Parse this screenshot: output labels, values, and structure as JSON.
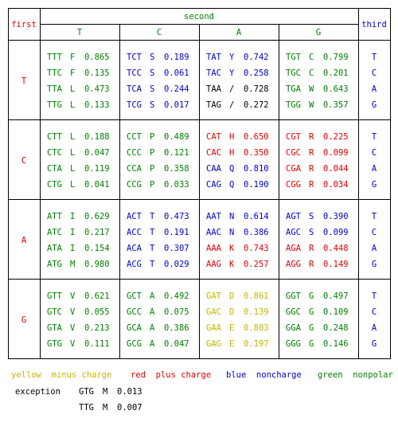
{
  "header": {
    "first_label": "first",
    "second_label": "second",
    "third_label": "third",
    "columns": [
      "T",
      "C",
      "A",
      "G"
    ]
  },
  "rows": [
    {
      "label": "T",
      "third": [
        "T",
        "C",
        "A",
        "G"
      ],
      "cells": [
        [
          {
            "codon": "TTT",
            "aa": "F",
            "freq": "0.865",
            "cls": "green"
          },
          {
            "codon": "TTC",
            "aa": "F",
            "freq": "0.135",
            "cls": "green"
          },
          {
            "codon": "TTA",
            "aa": "L",
            "freq": "0.473",
            "cls": "green"
          },
          {
            "codon": "TTG",
            "aa": "L",
            "freq": "0.133",
            "cls": "green"
          }
        ],
        [
          {
            "codon": "TCT",
            "aa": "S",
            "freq": "0.189",
            "cls": "blue"
          },
          {
            "codon": "TCC",
            "aa": "S",
            "freq": "0.061",
            "cls": "blue"
          },
          {
            "codon": "TCA",
            "aa": "S",
            "freq": "0.244",
            "cls": "blue"
          },
          {
            "codon": "TCG",
            "aa": "S",
            "freq": "0.017",
            "cls": "blue"
          }
        ],
        [
          {
            "codon": "TAT",
            "aa": "Y",
            "freq": "0.742",
            "cls": "blue"
          },
          {
            "codon": "TAC",
            "aa": "Y",
            "freq": "0.258",
            "cls": "blue"
          },
          {
            "codon": "TAA",
            "aa": "/",
            "freq": "0.728",
            "cls": "black"
          },
          {
            "codon": "TAG",
            "aa": "/",
            "freq": "0.272",
            "cls": "black"
          }
        ],
        [
          {
            "codon": "TGT",
            "aa": "C",
            "freq": "0.799",
            "cls": "green"
          },
          {
            "codon": "TGC",
            "aa": "C",
            "freq": "0.201",
            "cls": "green"
          },
          {
            "codon": "TGA",
            "aa": "W",
            "freq": "0.643",
            "cls": "green"
          },
          {
            "codon": "TGG",
            "aa": "W",
            "freq": "0.357",
            "cls": "green"
          }
        ]
      ]
    },
    {
      "label": "C",
      "third": [
        "T",
        "C",
        "A",
        "G"
      ],
      "cells": [
        [
          {
            "codon": "CTT",
            "aa": "L",
            "freq": "0.188",
            "cls": "green"
          },
          {
            "codon": "CTC",
            "aa": "L",
            "freq": "0.047",
            "cls": "green"
          },
          {
            "codon": "CTA",
            "aa": "L",
            "freq": "0.119",
            "cls": "green"
          },
          {
            "codon": "CTG",
            "aa": "L",
            "freq": "0.041",
            "cls": "green"
          }
        ],
        [
          {
            "codon": "CCT",
            "aa": "P",
            "freq": "0.489",
            "cls": "green"
          },
          {
            "codon": "CCC",
            "aa": "P",
            "freq": "0.121",
            "cls": "green"
          },
          {
            "codon": "CCA",
            "aa": "P",
            "freq": "0.358",
            "cls": "green"
          },
          {
            "codon": "CCG",
            "aa": "P",
            "freq": "0.033",
            "cls": "green"
          }
        ],
        [
          {
            "codon": "CAT",
            "aa": "H",
            "freq": "0.650",
            "cls": "red"
          },
          {
            "codon": "CAC",
            "aa": "H",
            "freq": "0.350",
            "cls": "red"
          },
          {
            "codon": "CAA",
            "aa": "Q",
            "freq": "0.810",
            "cls": "blue"
          },
          {
            "codon": "CAG",
            "aa": "Q",
            "freq": "0.190",
            "cls": "blue"
          }
        ],
        [
          {
            "codon": "CGT",
            "aa": "R",
            "freq": "0.225",
            "cls": "red"
          },
          {
            "codon": "CGC",
            "aa": "R",
            "freq": "0.099",
            "cls": "red"
          },
          {
            "codon": "CGA",
            "aa": "R",
            "freq": "0.044",
            "cls": "red"
          },
          {
            "codon": "CGG",
            "aa": "R",
            "freq": "0.034",
            "cls": "red"
          }
        ]
      ]
    },
    {
      "label": "A",
      "third": [
        "T",
        "C",
        "A",
        "G"
      ],
      "cells": [
        [
          {
            "codon": "ATT",
            "aa": "I",
            "freq": "0.629",
            "cls": "green"
          },
          {
            "codon": "ATC",
            "aa": "I",
            "freq": "0.217",
            "cls": "green"
          },
          {
            "codon": "ATA",
            "aa": "I",
            "freq": "0.154",
            "cls": "green"
          },
          {
            "codon": "ATG",
            "aa": "M",
            "freq": "0.980",
            "cls": "green"
          }
        ],
        [
          {
            "codon": "ACT",
            "aa": "T",
            "freq": "0.473",
            "cls": "blue"
          },
          {
            "codon": "ACC",
            "aa": "T",
            "freq": "0.191",
            "cls": "blue"
          },
          {
            "codon": "ACA",
            "aa": "T",
            "freq": "0.307",
            "cls": "blue"
          },
          {
            "codon": "ACG",
            "aa": "T",
            "freq": "0.029",
            "cls": "blue"
          }
        ],
        [
          {
            "codon": "AAT",
            "aa": "N",
            "freq": "0.614",
            "cls": "blue"
          },
          {
            "codon": "AAC",
            "aa": "N",
            "freq": "0.386",
            "cls": "blue"
          },
          {
            "codon": "AAA",
            "aa": "K",
            "freq": "0.743",
            "cls": "red"
          },
          {
            "codon": "AAG",
            "aa": "K",
            "freq": "0.257",
            "cls": "red"
          }
        ],
        [
          {
            "codon": "AGT",
            "aa": "S",
            "freq": "0.390",
            "cls": "blue"
          },
          {
            "codon": "AGC",
            "aa": "S",
            "freq": "0.099",
            "cls": "blue"
          },
          {
            "codon": "AGA",
            "aa": "R",
            "freq": "0.448",
            "cls": "red"
          },
          {
            "codon": "AGG",
            "aa": "R",
            "freq": "0.149",
            "cls": "red"
          }
        ]
      ]
    },
    {
      "label": "G",
      "third": [
        "T",
        "C",
        "A",
        "G"
      ],
      "cells": [
        [
          {
            "codon": "GTT",
            "aa": "V",
            "freq": "0.621",
            "cls": "green"
          },
          {
            "codon": "GTC",
            "aa": "V",
            "freq": "0.055",
            "cls": "green"
          },
          {
            "codon": "GTA",
            "aa": "V",
            "freq": "0.213",
            "cls": "green"
          },
          {
            "codon": "GTG",
            "aa": "V",
            "freq": "0.111",
            "cls": "green"
          }
        ],
        [
          {
            "codon": "GCT",
            "aa": "A",
            "freq": "0.492",
            "cls": "green"
          },
          {
            "codon": "GCC",
            "aa": "A",
            "freq": "0.075",
            "cls": "green"
          },
          {
            "codon": "GCA",
            "aa": "A",
            "freq": "0.386",
            "cls": "green"
          },
          {
            "codon": "GCG",
            "aa": "A",
            "freq": "0.047",
            "cls": "green"
          }
        ],
        [
          {
            "codon": "GAT",
            "aa": "D",
            "freq": "0.861",
            "cls": "yellow"
          },
          {
            "codon": "GAC",
            "aa": "D",
            "freq": "0.139",
            "cls": "yellow"
          },
          {
            "codon": "GAA",
            "aa": "E",
            "freq": "0.803",
            "cls": "yellow"
          },
          {
            "codon": "GAG",
            "aa": "E",
            "freq": "0.197",
            "cls": "yellow"
          }
        ],
        [
          {
            "codon": "GGT",
            "aa": "G",
            "freq": "0.497",
            "cls": "green"
          },
          {
            "codon": "GGC",
            "aa": "G",
            "freq": "0.109",
            "cls": "green"
          },
          {
            "codon": "GGA",
            "aa": "G",
            "freq": "0.248",
            "cls": "green"
          },
          {
            "codon": "GGG",
            "aa": "G",
            "freq": "0.146",
            "cls": "green"
          }
        ]
      ]
    }
  ],
  "legend": [
    {
      "color": "yellow",
      "text": "yellow  minus charge"
    },
    {
      "color": "red",
      "text": "red  plus charge"
    },
    {
      "color": "blue",
      "text": "blue  noncharge"
    },
    {
      "color": "green",
      "text": "green  nonpolar"
    }
  ],
  "exception": {
    "label": "exception",
    "items": [
      {
        "codon": "GTG",
        "aa": "M",
        "freq": "0.013"
      },
      {
        "codon": "TTG",
        "aa": "M",
        "freq": "0.007"
      }
    ]
  },
  "colors": {
    "yellow": "#c8b400",
    "red": "#e00000",
    "blue": "#0000cc",
    "green": "#008000",
    "black": "#000000"
  }
}
